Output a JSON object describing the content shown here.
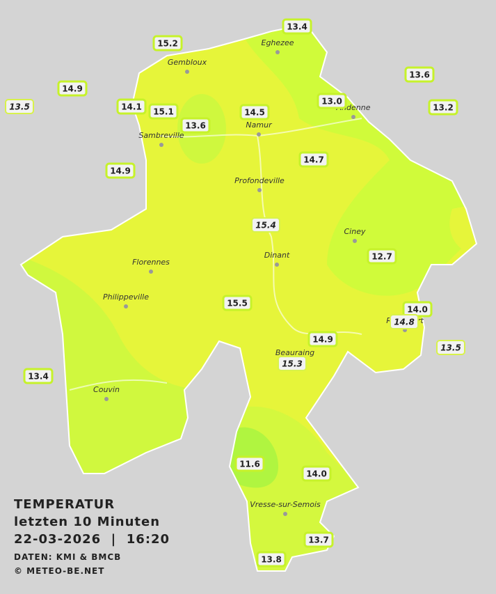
{
  "legend": {
    "title": "TEMPERATUR",
    "period": "letzten 10 Minuten",
    "timestamp": "22-03-2026  |  16:20",
    "source": "DATEN: KMI & BMCB",
    "copyright": "© METEO-BE.NET"
  },
  "cities": [
    "Eghezee",
    "Gembloux",
    "Andenne",
    "Namur",
    "Sambreville",
    "Profondeville",
    "Ciney",
    "Dinant",
    "Florennes",
    "Philippeville",
    "Beauraing",
    "Rochefort",
    "Couvin",
    "Vresse-sur-Semois"
  ],
  "stations": [
    {
      "value": "13.4",
      "italic": false
    },
    {
      "value": "15.2",
      "italic": false
    },
    {
      "value": "14.9",
      "italic": false
    },
    {
      "value": "13.5",
      "italic": true
    },
    {
      "value": "14.1",
      "italic": false
    },
    {
      "value": "15.1",
      "italic": false
    },
    {
      "value": "13.6",
      "italic": false
    },
    {
      "value": "14.5",
      "italic": false
    },
    {
      "value": "13.0",
      "italic": false
    },
    {
      "value": "13.6",
      "italic": false
    },
    {
      "value": "13.2",
      "italic": false
    },
    {
      "value": "14.9",
      "italic": false
    },
    {
      "value": "14.7",
      "italic": false
    },
    {
      "value": "15.4",
      "italic": true
    },
    {
      "value": "12.7",
      "italic": false
    },
    {
      "value": "15.5",
      "italic": false
    },
    {
      "value": "14.0",
      "italic": false
    },
    {
      "value": "14.8",
      "italic": true
    },
    {
      "value": "14.9",
      "italic": false
    },
    {
      "value": "13.5",
      "italic": true
    },
    {
      "value": "15.3",
      "italic": true
    },
    {
      "value": "13.4",
      "italic": false
    },
    {
      "value": "11.6",
      "italic": false
    },
    {
      "value": "14.0",
      "italic": false
    },
    {
      "value": "13.7",
      "italic": false
    },
    {
      "value": "13.8",
      "italic": false
    }
  ]
}
